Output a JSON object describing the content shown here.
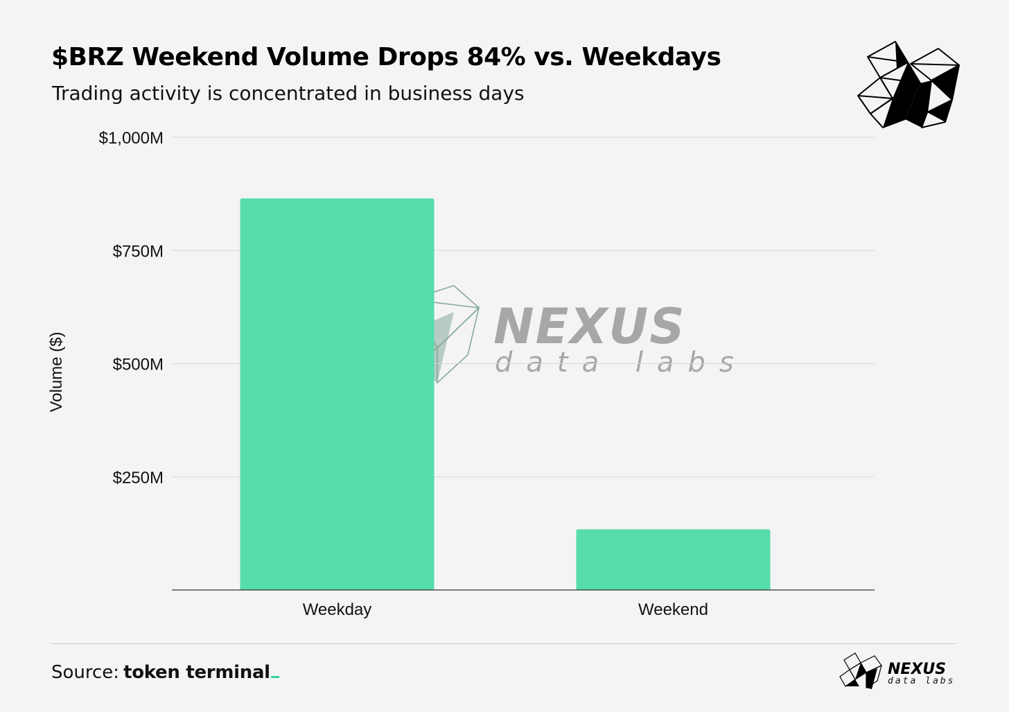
{
  "header": {
    "title": "$BRZ Weekend Volume Drops 84% vs. Weekdays",
    "subtitle": "Trading activity is concentrated in business days"
  },
  "chart_data": {
    "type": "bar",
    "categories": [
      "Weekday",
      "Weekend"
    ],
    "values": [
      865,
      134
    ],
    "value_unit": "$M",
    "ylabel": "Volume ($)",
    "ylim": [
      0,
      1000
    ],
    "y_ticks": [
      250,
      500,
      750,
      1000
    ],
    "y_tick_labels": [
      "$250M",
      "$500M",
      "$750M",
      "$1,000M"
    ],
    "bar_color": "#56dda9",
    "grid": true,
    "legend": "none"
  },
  "watermark": {
    "word": "NEXUS",
    "sub": "data labs"
  },
  "footer": {
    "source_label": "Source:",
    "source_brand": "token terminal",
    "logo_word": "NEXUS",
    "logo_sub": "data labs"
  },
  "colors": {
    "background": "#f4f4f4",
    "bar": "#56dda9",
    "accent": "#2fd39a"
  },
  "icons": [
    "nexus-logo-icon",
    "nexus-watermark-icon"
  ]
}
